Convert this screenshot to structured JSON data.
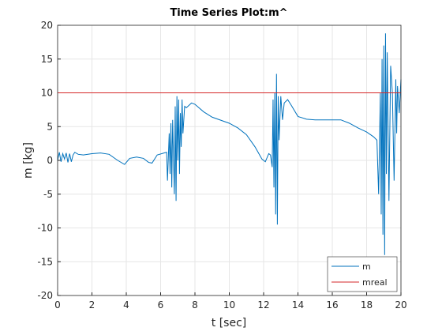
{
  "chart_data": {
    "type": "line",
    "title": "Time Series Plot:m^",
    "xlabel": "t [sec]",
    "ylabel": "m [kg]",
    "xlim": [
      0,
      20
    ],
    "ylim": [
      -20,
      20
    ],
    "xticks": [
      0,
      2,
      4,
      6,
      8,
      10,
      12,
      14,
      16,
      18,
      20
    ],
    "yticks": [
      -20,
      -15,
      -10,
      -5,
      0,
      5,
      10,
      15,
      20
    ],
    "grid": true,
    "legend": "bottom-right",
    "series": [
      {
        "name": "m",
        "color": "#0072bd",
        "x": [
          0,
          0.1,
          0.2,
          0.3,
          0.4,
          0.5,
          0.6,
          0.7,
          0.8,
          0.9,
          1.0,
          1.2,
          1.5,
          2,
          2.5,
          3,
          3.5,
          3.9,
          4.2,
          4.6,
          5,
          5.3,
          5.5,
          5.8,
          6.2,
          6.35,
          6.4,
          6.5,
          6.55,
          6.6,
          6.65,
          6.7,
          6.8,
          6.85,
          6.9,
          6.95,
          7.0,
          7.05,
          7.1,
          7.15,
          7.2,
          7.25,
          7.3,
          7.4,
          7.5,
          7.8,
          8,
          8.5,
          9,
          10,
          10.5,
          11,
          11.5,
          11.9,
          12.1,
          12.3,
          12.4,
          12.5,
          12.55,
          12.6,
          12.65,
          12.7,
          12.75,
          12.8,
          12.85,
          12.9,
          13,
          13.1,
          13.2,
          13.4,
          13.6,
          14,
          14.5,
          15,
          16,
          16.5,
          17,
          17.5,
          18,
          18.4,
          18.6,
          18.7,
          18.8,
          18.85,
          18.9,
          18.95,
          19.0,
          19.05,
          19.1,
          19.15,
          19.2,
          19.3,
          19.4,
          19.5,
          19.6,
          19.7,
          19.75,
          19.8,
          19.9,
          20
        ],
        "values": [
          0,
          1.2,
          -0.2,
          1.0,
          0.2,
          1.1,
          -0.3,
          1.0,
          -0.2,
          0.8,
          1.2,
          0.9,
          0.8,
          1.0,
          1.1,
          0.9,
          0.0,
          -0.6,
          0.3,
          0.5,
          0.3,
          -0.3,
          -0.4,
          0.8,
          1.1,
          1.2,
          -3,
          4,
          -2,
          5.5,
          -4,
          6,
          -5,
          8,
          -6,
          9.5,
          0,
          9,
          -2,
          7,
          2,
          9,
          4,
          8,
          7.8,
          8.5,
          8.3,
          7.2,
          6.4,
          5.5,
          4.8,
          3.8,
          2,
          0.2,
          -0.2,
          1,
          0.8,
          -1,
          9,
          -4,
          10,
          -8,
          12.8,
          -9.5,
          9.5,
          3,
          9.5,
          6,
          8.5,
          9,
          8.2,
          6.5,
          6.1,
          6.0,
          6.0,
          6.0,
          5.5,
          4.8,
          4.2,
          3.5,
          3,
          -5,
          10,
          -8,
          15,
          -11,
          17,
          -14,
          18.8,
          -2,
          16,
          -6,
          14,
          10,
          -3,
          12,
          4,
          11,
          7,
          12
        ]
      },
      {
        "name": "mreal",
        "color": "#d62728",
        "x": [
          0,
          20
        ],
        "values": [
          10,
          10
        ]
      }
    ]
  }
}
